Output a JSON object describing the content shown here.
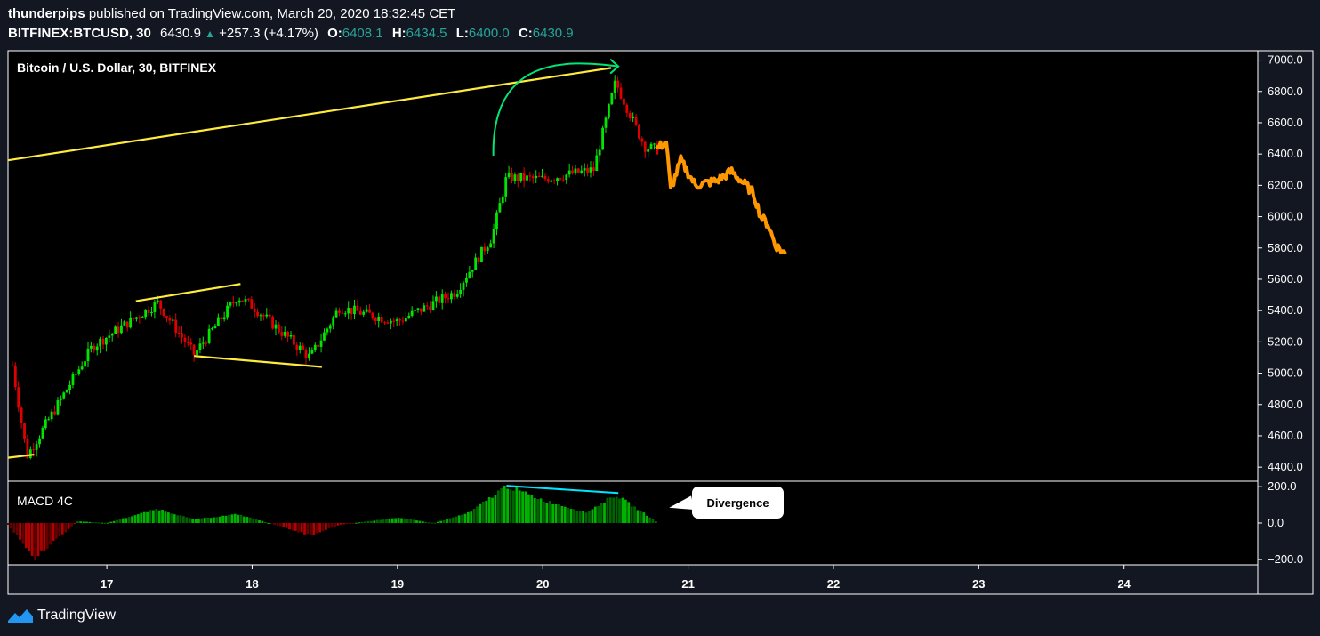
{
  "header": {
    "author": "thunderpips",
    "published_text": "published on TradingView.com, March 20, 2020 18:32:45 CET",
    "symbol": "BITFINEX:BTCUSD, 30",
    "last": "6430.9",
    "change": "+257.3 (+4.17%)",
    "o_label": "O:",
    "o_val": "6408.1",
    "h_label": "H:",
    "h_val": "6434.5",
    "l_label": "L:",
    "l_val": "6400.0",
    "c_label": "C:",
    "c_val": "6430.9",
    "up_color": "#26a69a"
  },
  "chart_data": [
    {
      "type": "candlestick",
      "title": "Bitcoin / U.S. Dollar, 30, BITFINEX",
      "x_tick_labels": [
        "17",
        "18",
        "19",
        "20",
        "21",
        "22",
        "23",
        "24"
      ],
      "y_ticks": [
        4400,
        4600,
        4800,
        5000,
        5200,
        5400,
        5600,
        5800,
        6000,
        6200,
        6400,
        6600,
        6800,
        7000
      ],
      "y_tick_labels": [
        "4400.0",
        "4600.0",
        "4800.0",
        "5000.0",
        "5200.0",
        "5400.0",
        "5600.0",
        "5800.0",
        "6000.0",
        "6200.0",
        "6400.0",
        "6600.0",
        "6800.0",
        "7000.0"
      ],
      "ylim": [
        4310,
        7060
      ],
      "x_range_days": [
        16.32,
        24.92
      ],
      "key_prices": [
        {
          "day": 16.35,
          "price": 5050
        },
        {
          "day": 16.45,
          "price": 4470
        },
        {
          "day": 16.9,
          "price": 5170
        },
        {
          "day": 17.35,
          "price": 5450
        },
        {
          "day": 17.6,
          "price": 5120
        },
        {
          "day": 17.9,
          "price": 5490
        },
        {
          "day": 18.0,
          "price": 5430
        },
        {
          "day": 18.4,
          "price": 5100
        },
        {
          "day": 18.6,
          "price": 5420
        },
        {
          "day": 19.0,
          "price": 5330
        },
        {
          "day": 19.4,
          "price": 5520
        },
        {
          "day": 19.65,
          "price": 5870
        },
        {
          "day": 19.75,
          "price": 6250
        },
        {
          "day": 20.0,
          "price": 6240
        },
        {
          "day": 20.35,
          "price": 6300
        },
        {
          "day": 20.5,
          "price": 6860
        },
        {
          "day": 20.7,
          "price": 6450
        },
        {
          "day": 20.78,
          "price": 6430
        }
      ],
      "projection": {
        "color": "#ff9800",
        "points": [
          {
            "day": 20.78,
            "price": 6430
          },
          {
            "day": 20.85,
            "price": 6480
          },
          {
            "day": 20.88,
            "price": 6170
          },
          {
            "day": 20.95,
            "price": 6360
          },
          {
            "day": 21.05,
            "price": 6200
          },
          {
            "day": 21.2,
            "price": 6230
          },
          {
            "day": 21.3,
            "price": 6290
          },
          {
            "day": 21.45,
            "price": 6150
          },
          {
            "day": 21.5,
            "price": 6000
          },
          {
            "day": 21.55,
            "price": 5950
          },
          {
            "day": 21.6,
            "price": 5820
          },
          {
            "day": 21.67,
            "price": 5760
          }
        ]
      },
      "trendlines": [
        {
          "color": "#ffeb3b",
          "from": {
            "day": 16.32,
            "price": 6360
          },
          "to": {
            "day": 20.47,
            "price": 6950
          }
        },
        {
          "color": "#ffeb3b",
          "from": {
            "day": 16.32,
            "price": 4460
          },
          "to": {
            "day": 16.5,
            "price": 4480
          }
        },
        {
          "color": "#ffeb3b",
          "from": {
            "day": 17.2,
            "price": 5460
          },
          "to": {
            "day": 17.92,
            "price": 5570
          }
        },
        {
          "color": "#ffeb3b",
          "from": {
            "day": 17.6,
            "price": 5110
          },
          "to": {
            "day": 18.48,
            "price": 5040
          }
        }
      ],
      "arc_color": "#00e676",
      "up_color": "#00e600",
      "down_color": "#e00000"
    },
    {
      "type": "histogram",
      "title": "MACD 4C",
      "y_tick_labels": [
        "200.0",
        "0.0",
        "−200.0"
      ],
      "y_ticks": [
        200,
        0,
        -200
      ],
      "ylim": [
        -230,
        230
      ],
      "divergence_line_color": "#00e5ff",
      "annotation": "Divergence",
      "approx_values": [
        {
          "day": 16.32,
          "value": -10
        },
        {
          "day": 16.5,
          "value": -200
        },
        {
          "day": 16.7,
          "value": -60
        },
        {
          "day": 16.8,
          "value": 10
        },
        {
          "day": 17.0,
          "value": 0
        },
        {
          "day": 17.35,
          "value": 80
        },
        {
          "day": 17.6,
          "value": 20
        },
        {
          "day": 17.9,
          "value": 50
        },
        {
          "day": 18.2,
          "value": -20
        },
        {
          "day": 18.4,
          "value": -70
        },
        {
          "day": 18.6,
          "value": -10
        },
        {
          "day": 19.0,
          "value": 30
        },
        {
          "day": 19.25,
          "value": 0
        },
        {
          "day": 19.5,
          "value": 60
        },
        {
          "day": 19.75,
          "value": 210
        },
        {
          "day": 20.0,
          "value": 130
        },
        {
          "day": 20.3,
          "value": 60
        },
        {
          "day": 20.5,
          "value": 160
        },
        {
          "day": 20.78,
          "value": 10
        }
      ]
    }
  ],
  "footer": {
    "brand": "TradingView",
    "logo_color": "#2196f3"
  }
}
